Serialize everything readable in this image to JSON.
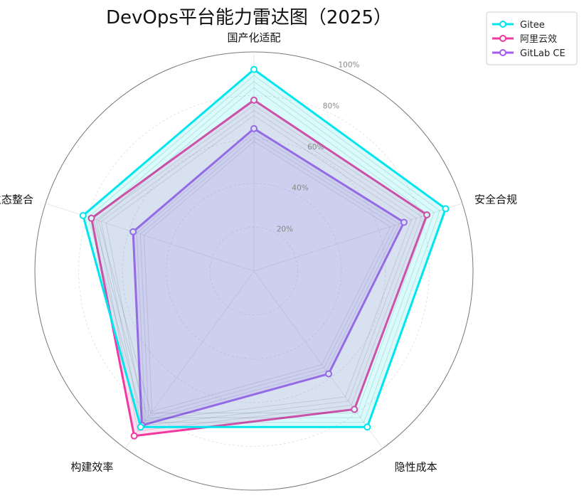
{
  "chart_data": {
    "type": "radar",
    "title": "DevOps平台能力雷达图（2025）",
    "axes": [
      "国产化适配",
      "安全合规",
      "隐性成本",
      "构建效率",
      "生态整合"
    ],
    "rlim": [
      0,
      100
    ],
    "rticks": [
      20,
      40,
      60,
      80,
      100
    ],
    "rtick_labels": [
      "20%",
      "40%",
      "60%",
      "80%",
      "100%"
    ],
    "grid": true,
    "legend_position": "top-right",
    "series": [
      {
        "name": "Gitee",
        "values": [
          92,
          92,
          88,
          88,
          82
        ],
        "color": "#00e5ee"
      },
      {
        "name": "阿里云效",
        "values": [
          78,
          83,
          78,
          93,
          78
        ],
        "color": "#f2389e"
      },
      {
        "name": "GitLab CE",
        "values": [
          65,
          72,
          58,
          87,
          58
        ],
        "color": "#a45cf0"
      }
    ]
  }
}
